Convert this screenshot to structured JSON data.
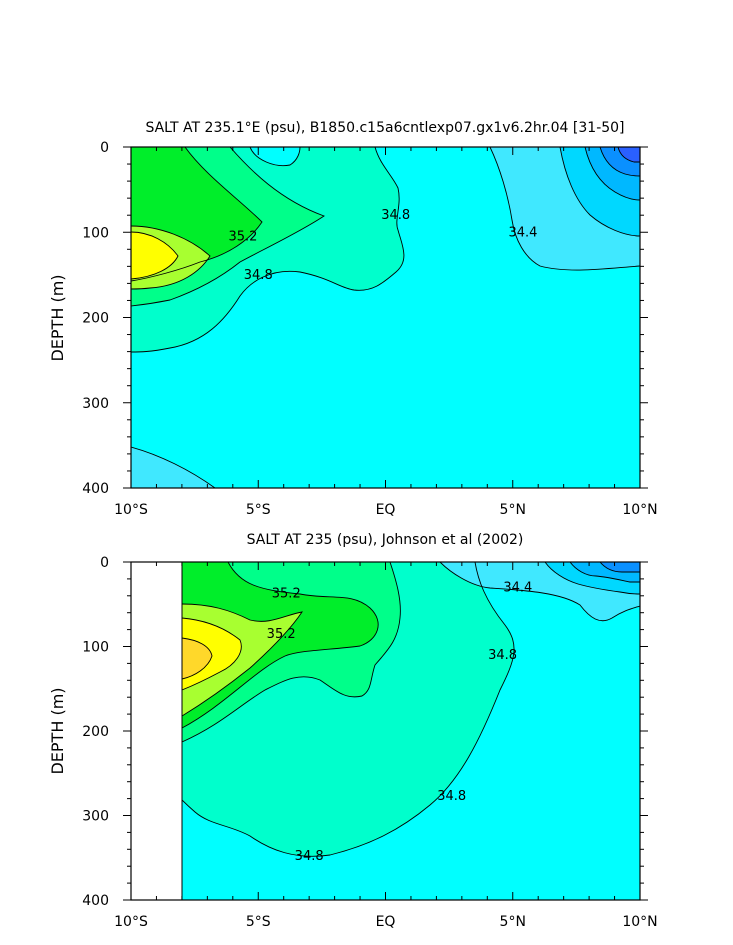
{
  "colors": {
    "c33_6": "#2a60ff",
    "c33_8": "#0a90ff",
    "c34_0": "#00b8ff",
    "c34_2": "#00d8ff",
    "c34_4": "#40e8ff",
    "c34_6": "#00ffff",
    "c34_8": "#00ffcc",
    "c35_0": "#00ff8a",
    "c35_2": "#00ee2a",
    "c35_4": "#a8ff30",
    "c35_6": "#ffff00",
    "c35_8": "#ffd82a"
  },
  "chart_data": [
    {
      "type": "heatmap",
      "subtype": "filled-contour",
      "title": "SALT AT 235.1°E (psu), B1850.c15a6cntlexp07.gx1v6.2hr.04 [31-50]",
      "xlabel": "",
      "ylabel": "DEPTH (m)",
      "x_unit": "latitude",
      "xlim": [
        -10,
        10
      ],
      "ylim": [
        400,
        0
      ],
      "x_ticks": [
        -10,
        -5,
        0,
        5,
        10
      ],
      "x_tick_labels": [
        "10°S",
        "5°S",
        "EQ",
        "5°N",
        "10°N"
      ],
      "y_ticks": [
        0,
        100,
        200,
        300,
        400
      ],
      "y_tick_labels": [
        "0",
        "100",
        "200",
        "300",
        "400"
      ],
      "contour_labels": [
        {
          "text": "35.2",
          "x": -5.6,
          "y": 105
        },
        {
          "text": "34.8",
          "x": -5.0,
          "y": 150
        },
        {
          "text": "34.8",
          "x": 0.4,
          "y": 80
        },
        {
          "text": "34.4",
          "x": 5.4,
          "y": 100
        }
      ]
    },
    {
      "type": "heatmap",
      "subtype": "filled-contour",
      "title": "SALT AT 235 (psu), Johnson et al (2002)",
      "xlabel": "",
      "ylabel": "DEPTH (m)",
      "x_unit": "latitude",
      "xlim": [
        -10,
        10
      ],
      "ylim": [
        400,
        0
      ],
      "data_x_range": [
        -8,
        10
      ],
      "x_ticks": [
        -10,
        -5,
        0,
        5,
        10
      ],
      "x_tick_labels": [
        "10°S",
        "5°S",
        "EQ",
        "5°N",
        "10°N"
      ],
      "y_ticks": [
        0,
        100,
        200,
        300,
        400
      ],
      "y_tick_labels": [
        "0",
        "100",
        "200",
        "300",
        "400"
      ],
      "contour_labels": [
        {
          "text": "35.2",
          "x": -3.9,
          "y": 37
        },
        {
          "text": "35.2",
          "x": -4.1,
          "y": 85
        },
        {
          "text": "34.4",
          "x": 5.2,
          "y": 30
        },
        {
          "text": "34.8",
          "x": 4.6,
          "y": 110
        },
        {
          "text": "34.8",
          "x": 2.6,
          "y": 277
        },
        {
          "text": "34.8",
          "x": -3.0,
          "y": 348
        }
      ]
    }
  ]
}
